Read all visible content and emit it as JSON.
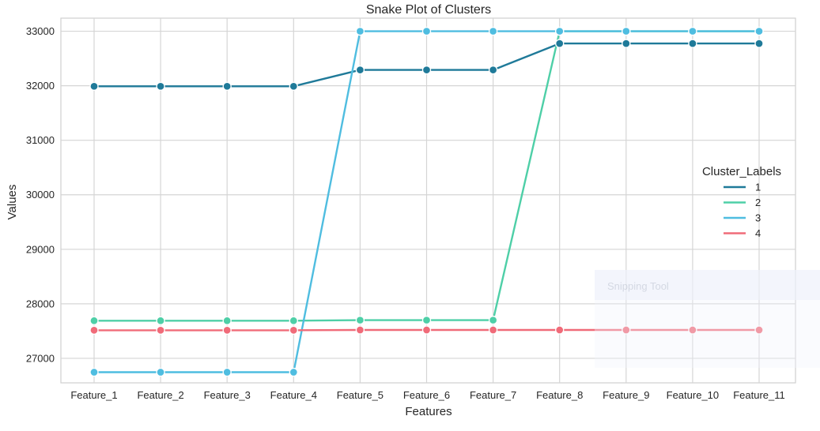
{
  "chart_data": {
    "type": "line",
    "title": "Snake Plot of Clusters",
    "xlabel": "Features",
    "ylabel": "Values",
    "categories": [
      "Feature_1",
      "Feature_2",
      "Feature_3",
      "Feature_4",
      "Feature_5",
      "Feature_6",
      "Feature_7",
      "Feature_8",
      "Feature_9",
      "Feature_10",
      "Feature_11"
    ],
    "ylim": [
      26550,
      33240
    ],
    "yticks": [
      27000,
      28000,
      29000,
      30000,
      31000,
      32000,
      33000
    ],
    "grid": true,
    "legend": {
      "title": "Cluster_Labels",
      "placement": "center-right"
    },
    "series": [
      {
        "name": "1",
        "color": "#1f7a99",
        "values": [
          31990,
          31990,
          31990,
          31990,
          32290,
          32290,
          32290,
          32775,
          32775,
          32775,
          32775
        ]
      },
      {
        "name": "2",
        "color": "#4ecfa7",
        "values": [
          27690,
          27690,
          27690,
          27690,
          27700,
          27700,
          27700,
          33000,
          33000,
          33000,
          33000
        ]
      },
      {
        "name": "3",
        "color": "#4fbde0",
        "values": [
          26745,
          26745,
          26745,
          26745,
          33000,
          33000,
          33000,
          33000,
          33000,
          33000,
          33000
        ]
      },
      {
        "name": "4",
        "color": "#f06b79",
        "values": [
          27515,
          27515,
          27515,
          27515,
          27520,
          27520,
          27520,
          27520,
          27520,
          27520,
          27520
        ]
      }
    ]
  },
  "overlay": {
    "label": "Snipping Tool"
  }
}
